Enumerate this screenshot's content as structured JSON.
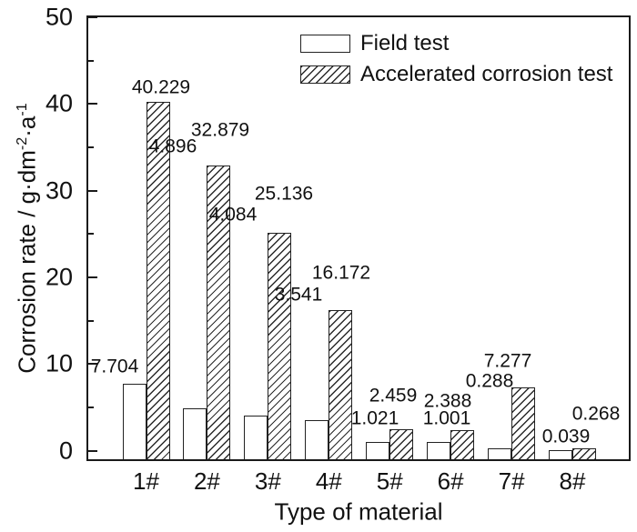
{
  "figure": {
    "background": "#ffffff",
    "line_color": "#1a1a1a"
  },
  "chart_data": {
    "type": "bar",
    "title": "",
    "xlabel": "Type of material",
    "ylabel": "Corrosion rate / g·dm⁻²·a⁻¹",
    "ylabel_parts": {
      "main": "Corrosion rate / g·dm",
      "sup1": "-2",
      "mid": "·a",
      "sup2": "-1"
    },
    "categories": [
      "1#",
      "2#",
      "3#",
      "4#",
      "5#",
      "6#",
      "7#",
      "8#"
    ],
    "series": [
      {
        "name": "Field test",
        "style": "white",
        "values": [
          7.704,
          4.896,
          4.084,
          3.541,
          1.021,
          1.001,
          0.288,
          0.039
        ]
      },
      {
        "name": "Accelerated corrosion test",
        "style": "diagonal-hatch",
        "values": [
          40.229,
          32.879,
          25.136,
          16.172,
          2.459,
          2.388,
          7.277,
          0.268
        ]
      }
    ],
    "ylim": [
      -1.2,
      50
    ],
    "yticks_major": [
      0,
      10,
      20,
      30,
      40,
      50
    ],
    "yticks_minor": [
      5,
      15,
      25,
      35,
      45
    ],
    "value_label_decimals": 3,
    "legend_position": "top-right-inside",
    "grid": false
  }
}
